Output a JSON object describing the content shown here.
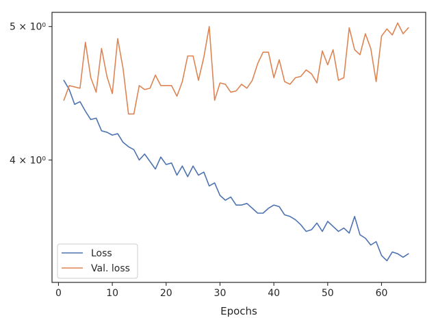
{
  "chart_data": {
    "type": "line",
    "xlabel": "Epochs",
    "ylabel": "",
    "yscale": "log",
    "xlim": [
      -1.2,
      68.2
    ],
    "ylim": [
      3.26,
      5.12
    ],
    "grid": false,
    "legend_position": "bottom-left",
    "x_ticks": [
      0,
      10,
      20,
      30,
      40,
      50,
      60
    ],
    "x_tick_labels": [
      "0",
      "10",
      "20",
      "30",
      "40",
      "50",
      "60"
    ],
    "y_ticks": [
      4.0,
      5.0
    ],
    "y_tick_labels": [
      "4 × 10⁰",
      "5 × 10⁰"
    ],
    "colors": {
      "loss": "#4c72b0",
      "val_loss": "#dd8452"
    },
    "x": [
      1,
      2,
      3,
      4,
      5,
      6,
      7,
      8,
      9,
      10,
      11,
      12,
      13,
      14,
      15,
      16,
      17,
      18,
      19,
      20,
      21,
      22,
      23,
      24,
      25,
      26,
      27,
      28,
      29,
      30,
      31,
      32,
      33,
      34,
      35,
      36,
      37,
      38,
      39,
      40,
      41,
      42,
      43,
      44,
      45,
      46,
      47,
      48,
      49,
      50,
      51,
      52,
      53,
      54,
      55,
      56,
      57,
      58,
      59,
      60,
      61,
      62,
      63,
      64,
      65
    ],
    "series": [
      {
        "name": "Loss",
        "values": [
          4.57,
          4.5,
          4.39,
          4.41,
          4.34,
          4.28,
          4.29,
          4.2,
          4.19,
          4.17,
          4.18,
          4.12,
          4.09,
          4.07,
          4.0,
          4.04,
          3.99,
          3.94,
          4.02,
          3.97,
          3.98,
          3.9,
          3.96,
          3.89,
          3.96,
          3.9,
          3.92,
          3.83,
          3.85,
          3.77,
          3.74,
          3.76,
          3.71,
          3.71,
          3.72,
          3.69,
          3.66,
          3.66,
          3.69,
          3.71,
          3.7,
          3.65,
          3.64,
          3.62,
          3.59,
          3.55,
          3.56,
          3.6,
          3.55,
          3.61,
          3.58,
          3.55,
          3.57,
          3.54,
          3.64,
          3.53,
          3.51,
          3.47,
          3.49,
          3.41,
          3.38,
          3.43,
          3.42,
          3.4,
          3.42
        ]
      },
      {
        "name": "Val. loss",
        "values": [
          4.42,
          4.53,
          4.52,
          4.51,
          4.87,
          4.59,
          4.48,
          4.82,
          4.6,
          4.47,
          4.9,
          4.66,
          4.32,
          4.32,
          4.53,
          4.5,
          4.51,
          4.61,
          4.53,
          4.53,
          4.53,
          4.45,
          4.56,
          4.76,
          4.76,
          4.57,
          4.75,
          5.0,
          4.42,
          4.55,
          4.54,
          4.48,
          4.49,
          4.54,
          4.51,
          4.57,
          4.7,
          4.79,
          4.79,
          4.59,
          4.73,
          4.56,
          4.54,
          4.59,
          4.6,
          4.65,
          4.62,
          4.55,
          4.8,
          4.69,
          4.81,
          4.57,
          4.59,
          4.99,
          4.81,
          4.77,
          4.94,
          4.82,
          4.56,
          4.92,
          4.98,
          4.93,
          5.03,
          4.94,
          4.99
        ]
      }
    ]
  }
}
